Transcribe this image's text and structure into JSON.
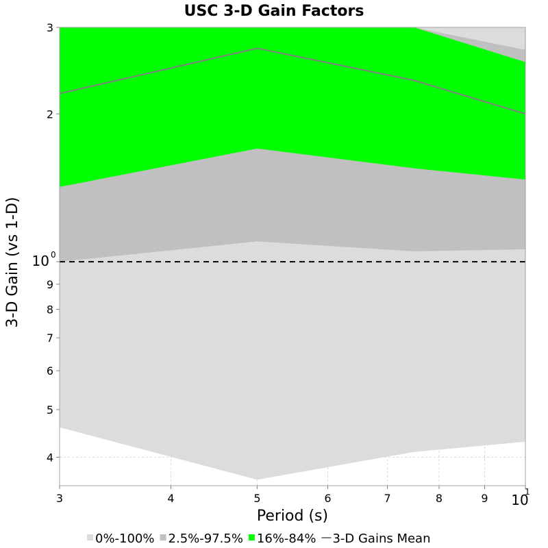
{
  "chart_data": {
    "type": "area",
    "title": "USC 3-D Gain Factors",
    "xlabel": "Period (s)",
    "ylabel": "3-D Gain (vs 1-D)",
    "x_scale": "log",
    "y_scale": "log",
    "xlim": [
      3,
      10
    ],
    "ylim": [
      3.5,
      3
    ],
    "ylim_note": "",
    "x": [
      3,
      5,
      7.5,
      10
    ],
    "x_ticks": [
      "3",
      "4",
      "5",
      "6",
      "7",
      "8",
      "9",
      "10"
    ],
    "x_tick_values": [
      3,
      4,
      5,
      6,
      7,
      8,
      9,
      10
    ],
    "x_tick_exponent": "1",
    "y_ticks": [
      "4",
      "5",
      "6",
      "7",
      "8",
      "9",
      "10",
      "2",
      "3"
    ],
    "y_tick_values": [
      0.4,
      0.5,
      0.6,
      0.7,
      0.8,
      0.9,
      1.0,
      2,
      3
    ],
    "y_tick_exponent": "0",
    "bands": [
      {
        "name": "0%-100%",
        "color": "#dcdcdc",
        "lower": [
          0.46,
          0.36,
          0.41,
          0.43
        ],
        "upper": [
          3.2,
          3.2,
          3.2,
          3.2
        ]
      },
      {
        "name": "2.5%-97.5%",
        "color": "#c0c0c0",
        "lower": [
          1.0,
          1.1,
          1.05,
          1.06
        ],
        "upper": [
          3.2,
          3.2,
          3.2,
          2.7
        ]
      },
      {
        "name": "16%-84%",
        "color": "#00ff00",
        "lower": [
          1.42,
          1.7,
          1.55,
          1.47
        ],
        "upper": [
          3.2,
          3.2,
          3.2,
          2.55
        ]
      }
    ],
    "series": [
      {
        "name": "3-D Gains Mean",
        "color": "#808080",
        "values": [
          2.2,
          2.72,
          2.34,
          2.0
        ]
      }
    ],
    "reference_line": {
      "y": 1.0,
      "style": "dashed",
      "color": "#000000"
    },
    "grid": true,
    "legend_position": "bottom"
  }
}
